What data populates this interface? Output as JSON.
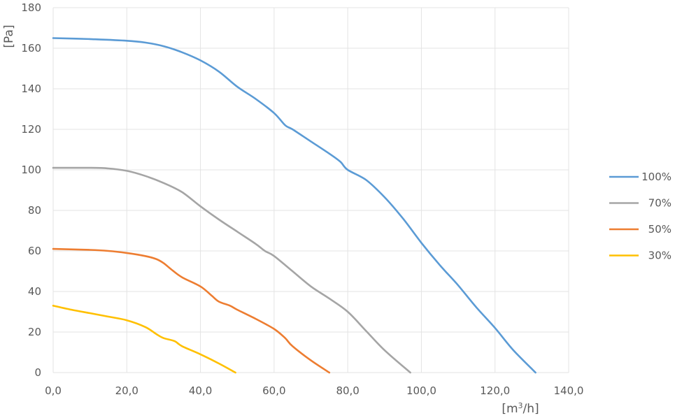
{
  "chart_data": {
    "type": "line",
    "title": "",
    "xlabel": "[m3/h]",
    "ylabel": "[Pa]",
    "xlim": [
      0,
      140
    ],
    "ylim": [
      0,
      180
    ],
    "xticks": [
      0,
      20,
      40,
      60,
      80,
      100,
      120,
      140
    ],
    "xtick_labels": [
      "0,0",
      "20,0",
      "40,0",
      "60,0",
      "80,0",
      "100,0",
      "120,0",
      "140,0"
    ],
    "yticks": [
      0,
      20,
      40,
      60,
      80,
      100,
      120,
      140,
      160,
      180
    ],
    "ytick_labels": [
      "0",
      "20",
      "40",
      "60",
      "80",
      "100",
      "120",
      "140",
      "160",
      "180"
    ],
    "grid": true,
    "legend": "right",
    "series": [
      {
        "name": "100%",
        "color": "#5b9bd5",
        "points": [
          [
            0,
            165
          ],
          [
            10,
            164.5
          ],
          [
            20,
            163.7
          ],
          [
            25,
            162.8
          ],
          [
            30,
            161
          ],
          [
            35,
            158
          ],
          [
            40,
            154
          ],
          [
            45,
            148.5
          ],
          [
            50,
            141
          ],
          [
            55,
            135
          ],
          [
            60,
            128
          ],
          [
            63,
            122
          ],
          [
            65,
            120
          ],
          [
            70,
            114
          ],
          [
            75,
            108
          ],
          [
            78,
            104
          ],
          [
            80,
            100
          ],
          [
            85,
            95
          ],
          [
            90,
            86.5
          ],
          [
            95,
            76
          ],
          [
            100,
            64
          ],
          [
            105,
            53
          ],
          [
            110,
            43
          ],
          [
            115,
            32
          ],
          [
            120,
            22
          ],
          [
            125,
            11
          ],
          [
            131,
            0
          ]
        ]
      },
      {
        "name": "70%",
        "color": "#a5a5a5",
        "points": [
          [
            0,
            101
          ],
          [
            10,
            101
          ],
          [
            15,
            100.7
          ],
          [
            20,
            99.5
          ],
          [
            25,
            97
          ],
          [
            30,
            93.5
          ],
          [
            35,
            89
          ],
          [
            40,
            82
          ],
          [
            45,
            75.5
          ],
          [
            50,
            69.5
          ],
          [
            55,
            63.5
          ],
          [
            57.5,
            60
          ],
          [
            60,
            57.5
          ],
          [
            65,
            50
          ],
          [
            70,
            42.5
          ],
          [
            75,
            36.5
          ],
          [
            80,
            30
          ],
          [
            85,
            20.5
          ],
          [
            90,
            11
          ],
          [
            97,
            0
          ]
        ]
      },
      {
        "name": "50%",
        "color": "#ed7d31",
        "points": [
          [
            0,
            61
          ],
          [
            10,
            60.5
          ],
          [
            15,
            60
          ],
          [
            20,
            59
          ],
          [
            25,
            57.5
          ],
          [
            28,
            56
          ],
          [
            30,
            54
          ],
          [
            32,
            51
          ],
          [
            35,
            47
          ],
          [
            40,
            42.5
          ],
          [
            43,
            38
          ],
          [
            45,
            35
          ],
          [
            48,
            33
          ],
          [
            50,
            31
          ],
          [
            55,
            26.5
          ],
          [
            60,
            21.5
          ],
          [
            63,
            17
          ],
          [
            65,
            13
          ],
          [
            70,
            6
          ],
          [
            75,
            0
          ]
        ]
      },
      {
        "name": "30%",
        "color": "#ffc000",
        "points": [
          [
            0,
            33
          ],
          [
            5,
            31
          ],
          [
            10,
            29.3
          ],
          [
            15,
            27.6
          ],
          [
            20,
            25.8
          ],
          [
            25,
            22.5
          ],
          [
            28,
            19
          ],
          [
            30,
            17
          ],
          [
            33,
            15.5
          ],
          [
            35,
            13
          ],
          [
            40,
            9
          ],
          [
            45,
            4.5
          ],
          [
            49.5,
            0
          ]
        ]
      }
    ]
  }
}
